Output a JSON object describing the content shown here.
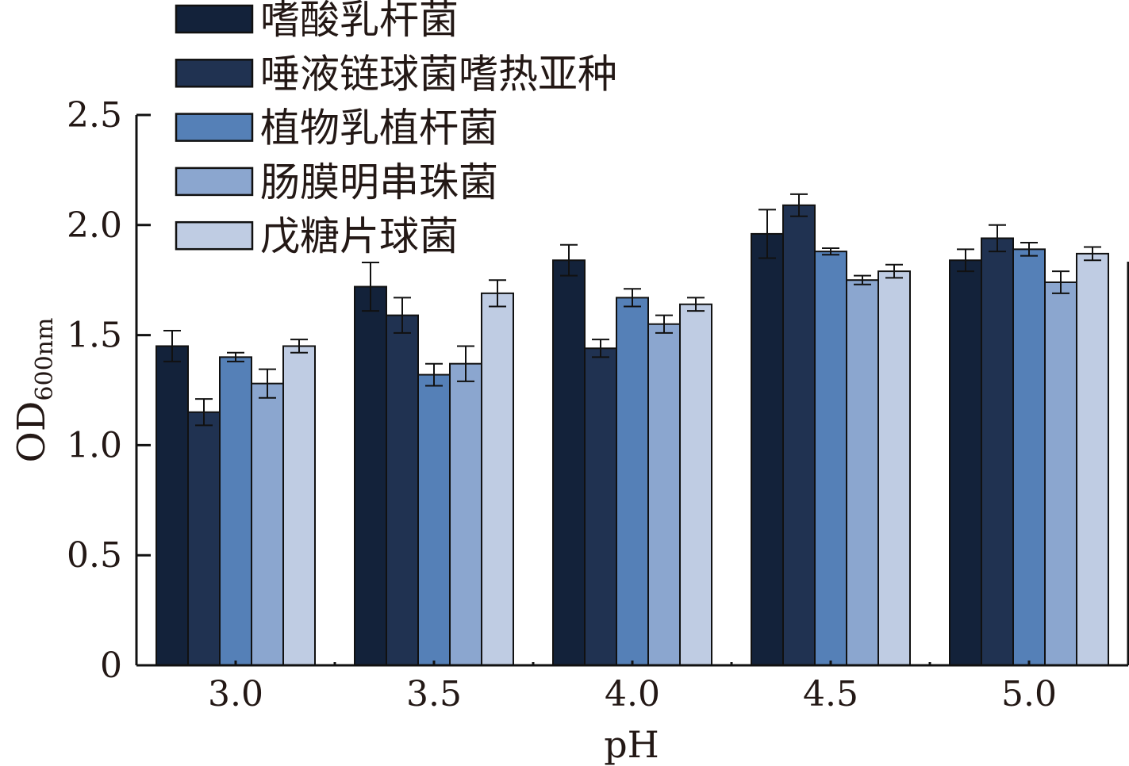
{
  "chart_data": {
    "type": "bar",
    "title": "",
    "xlabel": "pH",
    "ylabel": "OD",
    "ylabel_sub": "600nm",
    "ylim": [
      0,
      2.5
    ],
    "yticks": [
      "0",
      "0.5",
      "1.0",
      "1.5",
      "2.0",
      "2.5"
    ],
    "ytick_values": [
      0,
      0.5,
      1.0,
      1.5,
      2.0,
      2.5
    ],
    "categories": [
      "3.0",
      "3.5",
      "4.0",
      "4.5",
      "5.0"
    ],
    "legend_position": "top-left",
    "series": [
      {
        "name": "嗜酸乳杆菌",
        "color": "#13223a",
        "values": [
          1.45,
          1.72,
          1.84,
          1.96,
          1.84
        ],
        "errors": [
          0.07,
          0.11,
          0.07,
          0.11,
          0.05
        ]
      },
      {
        "name": "唾液链球菌嗜热亚种",
        "color": "#203251",
        "values": [
          1.15,
          1.59,
          1.44,
          2.09,
          1.94
        ],
        "errors": [
          0.06,
          0.08,
          0.04,
          0.05,
          0.06
        ]
      },
      {
        "name": "植物乳植杆菌",
        "color": "#5580b7",
        "values": [
          1.4,
          1.32,
          1.67,
          1.88,
          1.89
        ],
        "errors": [
          0.02,
          0.05,
          0.04,
          0.015,
          0.03
        ]
      },
      {
        "name": "肠膜明串珠菌",
        "color": "#8ba6cf",
        "values": [
          1.28,
          1.37,
          1.55,
          1.75,
          1.74
        ],
        "errors": [
          0.065,
          0.08,
          0.04,
          0.02,
          0.05
        ]
      },
      {
        "name": "戊糖片球菌",
        "color": "#bfcce3",
        "values": [
          1.45,
          1.69,
          1.64,
          1.79,
          1.87
        ],
        "errors": [
          0.03,
          0.06,
          0.03,
          0.03,
          0.03
        ]
      }
    ]
  }
}
